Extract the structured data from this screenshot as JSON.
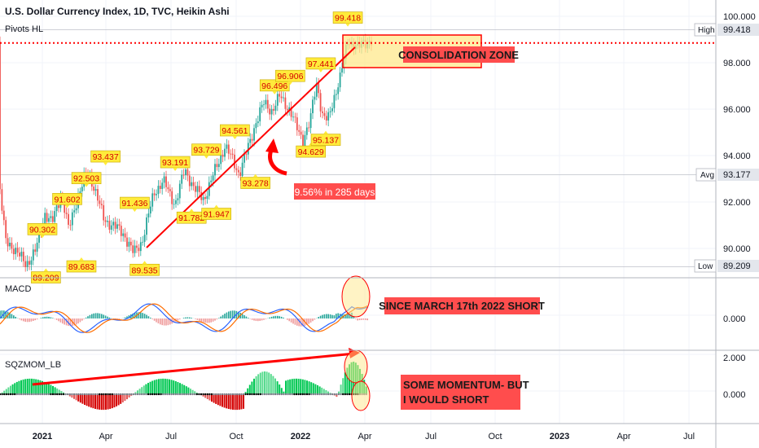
{
  "header": {
    "title": "U.S. Dollar Currency Index, 1D, TVC, Heikin Ashi",
    "indicator": "Pivots HL"
  },
  "colors": {
    "up": "#26a69a",
    "down": "#ef5350",
    "macd_line": "#2962ff",
    "signal_line": "#ff6d00",
    "annotation_red": "#ff0000",
    "annotation_fill": "#ff4d4d",
    "zone_fill": "#ffe88c",
    "pivot_label_fill": "#ffeb3b",
    "sqz_green": "#00c853",
    "sqz_red": "#d50000"
  },
  "chart_data": [
    {
      "type": "candlestick",
      "title": "U.S. Dollar Currency Index, 1D, TVC, Heikin Ashi",
      "y_ticks": [
        "100.000",
        "98.000",
        "96.000",
        "94.000",
        "92.000",
        "90.000"
      ],
      "ylim": [
        88.85,
        100.55
      ],
      "x_ticks": [
        "2021",
        "Apr",
        "Jul",
        "Oct",
        "2022",
        "Apr",
        "Jul",
        "Oct",
        "2023",
        "Apr",
        "Jul"
      ],
      "pivot_labels": [
        {
          "date": "2021-01-01",
          "value": "90.302",
          "kind": "high"
        },
        {
          "date": "2021-01-06",
          "value": "89.209",
          "kind": "low"
        },
        {
          "date": "2021-02-05",
          "value": "91.602",
          "kind": "high"
        },
        {
          "date": "2021-03-04",
          "value": "92.503",
          "kind": "high"
        },
        {
          "date": "2021-02-25",
          "value": "89.683",
          "kind": "low"
        },
        {
          "date": "2021-03-31",
          "value": "93.437",
          "kind": "high"
        },
        {
          "date": "2021-05-11",
          "value": "91.436",
          "kind": "high"
        },
        {
          "date": "2021-05-25",
          "value": "89.535",
          "kind": "low"
        },
        {
          "date": "2021-07-07",
          "value": "93.191",
          "kind": "high"
        },
        {
          "date": "2021-07-30",
          "value": "91.782",
          "kind": "low"
        },
        {
          "date": "2021-08-20",
          "value": "93.729",
          "kind": "high"
        },
        {
          "date": "2021-09-03",
          "value": "91.947",
          "kind": "low"
        },
        {
          "date": "2021-09-29",
          "value": "94.561",
          "kind": "high"
        },
        {
          "date": "2021-10-28",
          "value": "93.278",
          "kind": "low"
        },
        {
          "date": "2021-11-24",
          "value": "96.496",
          "kind": "high"
        },
        {
          "date": "2021-12-16",
          "value": "96.906",
          "kind": "high"
        },
        {
          "date": "2022-01-14",
          "value": "94.629",
          "kind": "low"
        },
        {
          "date": "2022-01-28",
          "value": "97.441",
          "kind": "high"
        },
        {
          "date": "2022-02-04",
          "value": "95.137",
          "kind": "low"
        },
        {
          "date": "2022-03-07",
          "value": "99.418",
          "kind": "high"
        }
      ],
      "right_labels": [
        {
          "name": "High",
          "value": "99.418"
        },
        {
          "name": "Avg",
          "value": "93.177"
        },
        {
          "name": "Low",
          "value": "89.209"
        }
      ],
      "annotations": {
        "zone_label": "CONSOLIDATION ZONE",
        "gain_label": "9.56% in 285 days",
        "resistance_level": 98.85
      }
    },
    {
      "type": "line",
      "title": "MACD",
      "y_ticks": [
        "0.000"
      ],
      "annotation": "SINCE MARCH 17th 2022 SHORT",
      "series": [
        {
          "name": "MACD"
        },
        {
          "name": "Signal"
        }
      ]
    },
    {
      "type": "bar",
      "title": "SQZMOM_LB",
      "y_ticks": [
        "2.000",
        "0.000"
      ],
      "annotation_lines": [
        "SOME MOMENTUM- BUT",
        "I WOULD SHORT"
      ]
    }
  ]
}
